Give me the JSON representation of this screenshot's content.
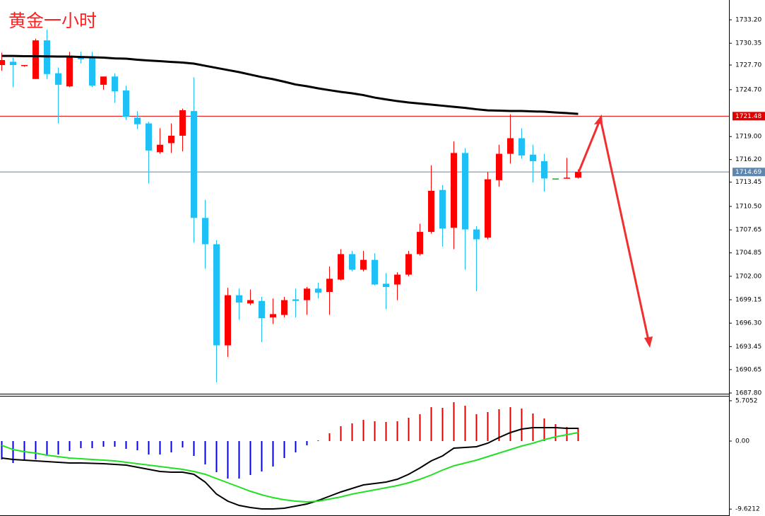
{
  "chart_data": [
    {
      "type": "candlestick",
      "title": "黄金一小时",
      "open": [
        1727.7,
        1728.1,
        1727.6,
        1726.0,
        1730.7,
        1726.7,
        1725.1,
        1728.7,
        1728.6,
        1725.3,
        1726.3,
        1724.6,
        1721.3,
        1720.6,
        1717.1,
        1718.2,
        1719.1,
        1722.1,
        1709.1,
        1705.9,
        1693.6,
        1699.7,
        1698.7,
        1699.0,
        1697.0,
        1697.3,
        1699.2,
        1699.1,
        1700.5,
        1700.1,
        1701.6,
        1704.7,
        1702.8,
        1704.0,
        1701.1,
        1701.0,
        1702.2,
        1704.7,
        1707.4,
        1712.5,
        1707.9,
        1717.0,
        1707.7,
        1706.7,
        1713.7,
        1716.9,
        1718.8,
        1716.8,
        1716.0,
        1713.9,
        1713.9,
        1714.0
      ],
      "high": [
        1729.2,
        1728.6,
        1727.7,
        1730.9,
        1732.0,
        1727.4,
        1729.3,
        1729.3,
        1729.3,
        1726.3,
        1726.7,
        1725.2,
        1722.1,
        1720.8,
        1720.0,
        1720.6,
        1722.4,
        1726.2,
        1711.3,
        1706.4,
        1700.6,
        1700.5,
        1700.4,
        1699.5,
        1699.3,
        1699.5,
        1700.5,
        1700.7,
        1701.2,
        1703.2,
        1705.3,
        1705.1,
        1705.1,
        1704.8,
        1702.4,
        1702.5,
        1705.1,
        1708.4,
        1715.5,
        1713.1,
        1718.4,
        1717.6,
        1708.1,
        1714.7,
        1718.0,
        1721.7,
        1720.0,
        1718.0,
        1716.9,
        1713.9,
        1716.4,
        1715.0
      ],
      "low": [
        1727.0,
        1725.0,
        1727.5,
        1726.0,
        1726.0,
        1720.6,
        1725.0,
        1727.9,
        1725.0,
        1724.7,
        1723.1,
        1721.0,
        1719.9,
        1713.3,
        1716.9,
        1717.0,
        1717.2,
        1706.1,
        1702.9,
        1689.1,
        1692.2,
        1696.7,
        1698.5,
        1694.0,
        1696.2,
        1697.0,
        1697.0,
        1697.3,
        1699.3,
        1697.3,
        1701.5,
        1702.6,
        1702.6,
        1700.9,
        1698.0,
        1699.1,
        1702.0,
        1704.5,
        1707.2,
        1705.6,
        1705.3,
        1702.8,
        1700.2,
        1706.5,
        1712.9,
        1715.7,
        1716.3,
        1713.4,
        1712.3,
        1713.9,
        1713.9,
        1713.9
      ],
      "close": [
        1728.3,
        1727.7,
        1727.7,
        1730.7,
        1726.6,
        1725.3,
        1728.7,
        1728.4,
        1725.2,
        1726.3,
        1724.5,
        1721.4,
        1720.5,
        1717.3,
        1718.0,
        1719.1,
        1722.2,
        1709.1,
        1705.9,
        1693.6,
        1699.7,
        1698.8,
        1699.1,
        1696.9,
        1697.4,
        1699.1,
        1699.0,
        1700.5,
        1700.0,
        1701.7,
        1704.7,
        1702.8,
        1704.0,
        1701.0,
        1700.7,
        1702.2,
        1704.7,
        1707.4,
        1712.4,
        1707.8,
        1717.0,
        1707.7,
        1706.5,
        1713.8,
        1716.9,
        1718.8,
        1716.7,
        1716.0,
        1713.9,
        1713.9,
        1714.0,
        1714.69
      ],
      "up_color": "#ff0000",
      "down_color": "#1ec0f5",
      "doji_color": "#00c000",
      "overlays": [
        {
          "color": "#000000",
          "values": [
            1728.81,
            1728.81,
            1728.77,
            1728.77,
            1728.75,
            1728.73,
            1728.73,
            1728.68,
            1728.64,
            1728.6,
            1728.51,
            1728.47,
            1728.34,
            1728.25,
            1728.17,
            1728.08,
            1728.0,
            1727.87,
            1727.61,
            1727.35,
            1727.09,
            1726.84,
            1726.53,
            1726.23,
            1725.98,
            1725.67,
            1725.33,
            1725.12,
            1724.86,
            1724.64,
            1724.43,
            1724.26,
            1724.04,
            1723.74,
            1723.52,
            1723.31,
            1723.14,
            1723.01,
            1722.88,
            1722.75,
            1722.62,
            1722.49,
            1722.32,
            1722.19,
            1722.15,
            1722.11,
            1722.11,
            1722.06,
            1722.02,
            1721.93,
            1721.85,
            1721.76
          ]
        }
      ],
      "price_lines": [
        {
          "value": 1721.48,
          "color": "#e00000"
        },
        {
          "value": 1714.69,
          "color": "#5f87ad"
        }
      ],
      "ylim": [
        1687.63,
        1735.61
      ],
      "yticks": [
        {
          "value": 1733.2,
          "label": "1733.20"
        },
        {
          "value": 1730.35,
          "label": "1730.35"
        },
        {
          "value": 1727.7,
          "label": "1727.70"
        },
        {
          "value": 1724.7,
          "label": "1724.70"
        },
        {
          "value": 1719.0,
          "label": "1719.00"
        },
        {
          "value": 1716.2,
          "label": "1716.20"
        },
        {
          "value": 1713.45,
          "label": "1713.45"
        },
        {
          "value": 1710.5,
          "label": "1710.50"
        },
        {
          "value": 1707.65,
          "label": "1707.65"
        },
        {
          "value": 1704.85,
          "label": "1704.85"
        },
        {
          "value": 1702.0,
          "label": "1702.00"
        },
        {
          "value": 1699.15,
          "label": "1699.15"
        },
        {
          "value": 1696.3,
          "label": "1696.30"
        },
        {
          "value": 1693.45,
          "label": "1693.45"
        },
        {
          "value": 1690.65,
          "label": "1690.65"
        },
        {
          "value": 1687.8,
          "label": "1687.80"
        }
      ]
    },
    {
      "type": "macd",
      "histogram": {
        "up_color": "#e00000",
        "down_color": "#0000e0",
        "values": [
          -2.6,
          -3.1,
          -2.8,
          -2.6,
          -2.1,
          -1.9,
          -1.4,
          -1.0,
          -1.0,
          -0.8,
          -0.8,
          -1.1,
          -1.3,
          -1.9,
          -1.9,
          -1.6,
          -0.9,
          -2.1,
          -3.3,
          -4.4,
          -5.3,
          -5.3,
          -4.8,
          -4.3,
          -3.6,
          -2.4,
          -1.6,
          -0.6,
          0.1,
          1.1,
          2.1,
          2.5,
          3.0,
          2.8,
          2.7,
          2.8,
          3.3,
          3.8,
          4.8,
          4.7,
          5.5,
          5.0,
          3.8,
          4.1,
          4.5,
          4.8,
          4.6,
          3.9,
          3.2,
          2.4,
          2.0,
          1.9
        ]
      },
      "lines": [
        {
          "color": "#000000",
          "values": [
            -2.4,
            -2.6,
            -2.7,
            -2.8,
            -2.9,
            -3.0,
            -3.1,
            -3.1,
            -3.15,
            -3.2,
            -3.3,
            -3.4,
            -3.7,
            -4.0,
            -4.3,
            -4.4,
            -4.4,
            -4.7,
            -5.8,
            -7.5,
            -8.5,
            -9.1,
            -9.4,
            -9.6,
            -9.6,
            -9.5,
            -9.2,
            -8.9,
            -8.4,
            -7.8,
            -7.2,
            -6.7,
            -6.2,
            -6.0,
            -5.8,
            -5.4,
            -4.7,
            -3.8,
            -2.8,
            -2.1,
            -1.0,
            -0.9,
            -0.8,
            -0.3,
            0.5,
            1.2,
            1.7,
            1.9,
            1.9,
            1.9,
            1.8,
            1.8
          ]
        },
        {
          "color": "#22e022",
          "values": [
            -0.6,
            -1.2,
            -1.5,
            -1.7,
            -2.0,
            -2.2,
            -2.4,
            -2.5,
            -2.6,
            -2.7,
            -2.8,
            -3.0,
            -3.2,
            -3.4,
            -3.6,
            -3.8,
            -4.0,
            -4.3,
            -4.7,
            -5.3,
            -5.9,
            -6.5,
            -7.1,
            -7.6,
            -8.0,
            -8.3,
            -8.5,
            -8.6,
            -8.5,
            -8.2,
            -7.9,
            -7.5,
            -7.2,
            -6.9,
            -6.6,
            -6.3,
            -5.9,
            -5.4,
            -4.8,
            -4.1,
            -3.5,
            -3.1,
            -2.7,
            -2.2,
            -1.7,
            -1.2,
            -0.7,
            -0.3,
            0.2,
            0.6,
            0.9,
            1.2
          ]
        }
      ],
      "ylim": [
        -10.5,
        6.3
      ],
      "yticks": [
        5.7052,
        {
          "value": 0,
          "label": "0.00"
        },
        -9.6212
      ]
    }
  ]
}
